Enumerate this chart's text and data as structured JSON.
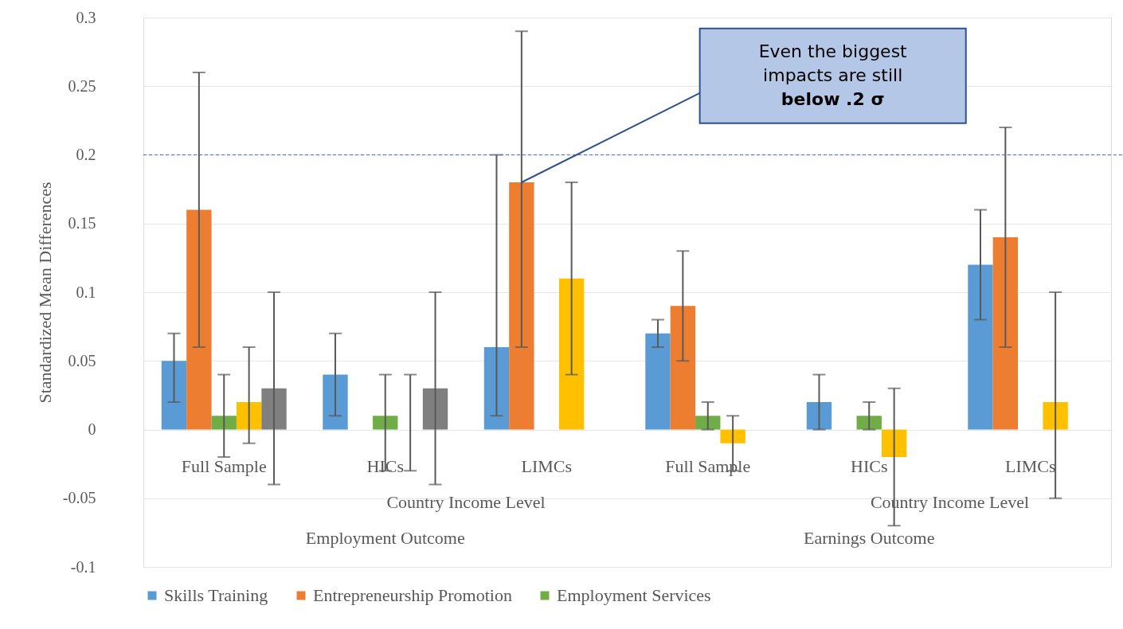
{
  "chart_data": {
    "type": "bar",
    "ylabel": "Standardized Mean Differences",
    "categories": [
      "Full Sample",
      "HICs",
      "LIMCs",
      "Full Sample",
      "HICs",
      "LIMCs"
    ],
    "series": [
      {
        "name": "Skills Training",
        "color": "#5b9bd5",
        "values": [
          0.05,
          0.04,
          0.06,
          0.07,
          0.02,
          0.12
        ],
        "errors": [
          [
            0.02,
            0.07
          ],
          [
            0.01,
            0.07
          ],
          [
            0.01,
            0.2
          ],
          [
            0.06,
            0.08
          ],
          [
            0.0,
            0.04
          ],
          [
            0.08,
            0.16
          ]
        ]
      },
      {
        "name": "Entrepreneurship Promotion",
        "color": "#ed7d31",
        "values": [
          0.16,
          null,
          0.18,
          0.09,
          null,
          0.14
        ],
        "errors": [
          [
            0.06,
            0.26
          ],
          null,
          [
            0.06,
            0.29
          ],
          [
            0.05,
            0.13
          ],
          null,
          [
            0.06,
            0.22
          ]
        ]
      },
      {
        "name": "Employment Services",
        "color": "#70ad47",
        "values": [
          0.01,
          0.01,
          null,
          0.01,
          0.01,
          null
        ],
        "errors": [
          [
            -0.02,
            0.04
          ],
          [
            -0.03,
            0.04
          ],
          null,
          [
            0.0,
            0.02
          ],
          [
            0.0,
            0.02
          ],
          null
        ]
      },
      {
        "color": "#ffc000",
        "values": [
          0.02,
          0.0,
          0.11,
          -0.01,
          -0.02,
          0.02
        ],
        "errors": [
          [
            -0.01,
            0.06
          ],
          [
            -0.03,
            0.04
          ],
          [
            0.04,
            0.18
          ],
          [
            -0.03,
            0.01
          ],
          [
            -0.07,
            0.03
          ],
          [
            -0.05,
            0.1
          ]
        ]
      },
      {
        "color": "#7f7f7f",
        "values": [
          0.03,
          0.03,
          null,
          null,
          null,
          null
        ],
        "errors": [
          [
            -0.04,
            0.1
          ],
          [
            -0.04,
            0.1
          ],
          null,
          null,
          null,
          null
        ]
      }
    ],
    "ylim": [
      -0.1,
      0.3
    ],
    "yticks": [
      -0.1,
      -0.05,
      0,
      0.05,
      0.1,
      0.15,
      0.2,
      0.25,
      0.3
    ],
    "ref_lines": [
      {
        "axis": "y",
        "value": 0.2,
        "color": "#4472c4",
        "line_style": "dashed"
      }
    ],
    "annotations": [
      "Even the biggest impacts are still below .2 σ",
      "Country Income Level",
      "Employment Outcome",
      "Country Income Level",
      "Earnings Outcome"
    ],
    "grid": "y",
    "legend": "bottom"
  }
}
